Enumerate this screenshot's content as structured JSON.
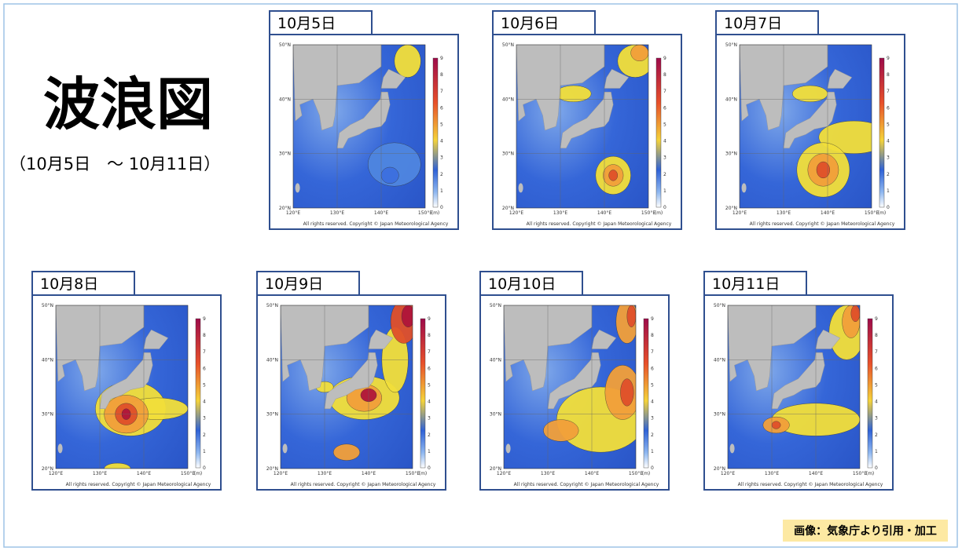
{
  "header": {
    "title": "波浪図",
    "period": "（10月5日　～ 10月11日）"
  },
  "map_labels": {
    "latitudes": [
      "50°N",
      "40°N",
      "30°N",
      "20°N"
    ],
    "longitudes": [
      "120°E",
      "130°E",
      "140°E",
      "150°E"
    ],
    "scale": [
      0,
      1,
      2,
      3,
      4,
      5,
      6,
      7,
      8,
      9
    ],
    "unit": "(m)",
    "copyright": "All rights reserved. Copyright © Japan Meteorological Agency"
  },
  "panels": [
    {
      "label": "10月5日"
    },
    {
      "label": "10月6日"
    },
    {
      "label": "10月7日"
    },
    {
      "label": "10月8日"
    },
    {
      "label": "10月9日"
    },
    {
      "label": "10月10日"
    },
    {
      "label": "10月11日"
    }
  ],
  "footer": {
    "credit": "画像：気象庁より引用・加工"
  }
}
